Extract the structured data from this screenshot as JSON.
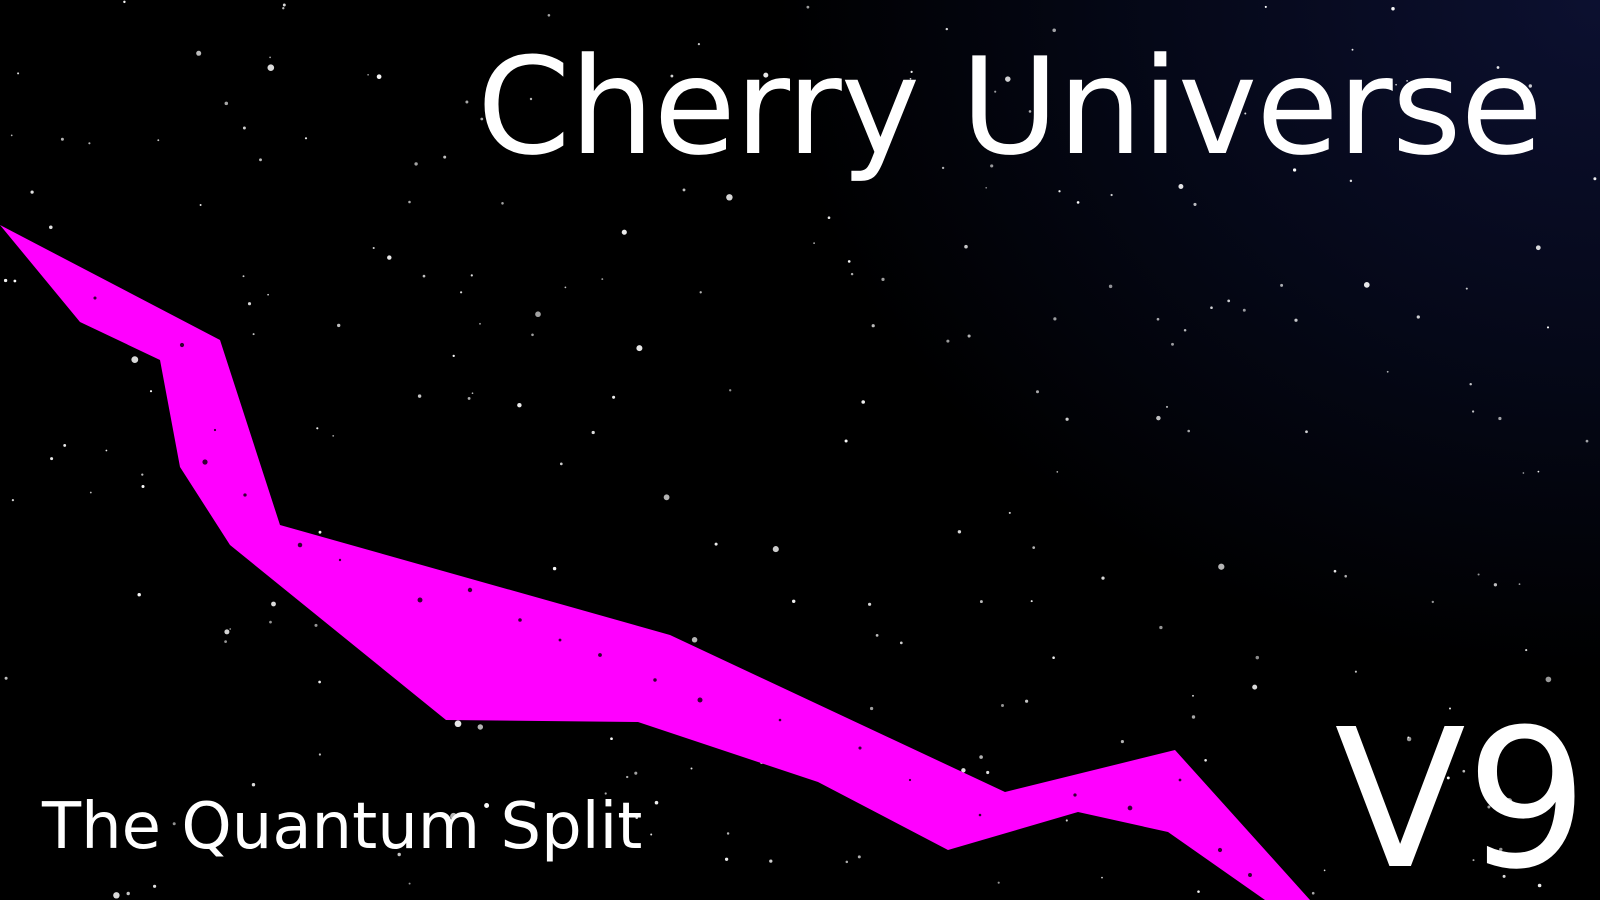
{
  "title": "Cherry Universe",
  "subtitle": "The Quantum Split",
  "version": "V9",
  "colors": {
    "background": "#000000",
    "background_glow": "#0c1030",
    "ribbon": "#ff00ff",
    "text": "#ffffff",
    "stars": "#ffffff"
  },
  "decorations": [
    "starfield",
    "magenta-ribbon"
  ]
}
